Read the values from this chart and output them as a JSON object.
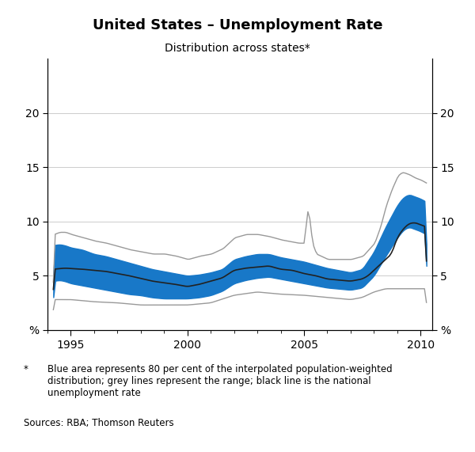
{
  "title": "United States – Unemployment Rate",
  "subtitle": "Distribution across states*",
  "ylim": [
    0,
    25
  ],
  "yticks": [
    0,
    5,
    10,
    15,
    20
  ],
  "yticklabels": [
    "%",
    "5",
    "10",
    "15",
    "20"
  ],
  "yticklabels_right": [
    "%",
    "5",
    "10",
    "15",
    "20"
  ],
  "xlim_start": 1994.25,
  "xlim_end": 2010.5,
  "xticks": [
    1995,
    2000,
    2005,
    2010
  ],
  "footnote_star": "*",
  "footnote_text": "Blue area represents 80 per cent of the interpolated population-weighted\ndistribution; grey lines represent the range; black line is the national\nunemployment rate",
  "sources": "Sources: RBA; Thomson Reuters",
  "blue_color": "#1878C8",
  "grey_color": "#999999",
  "black_color": "#222222",
  "grid_color": "#cccccc"
}
